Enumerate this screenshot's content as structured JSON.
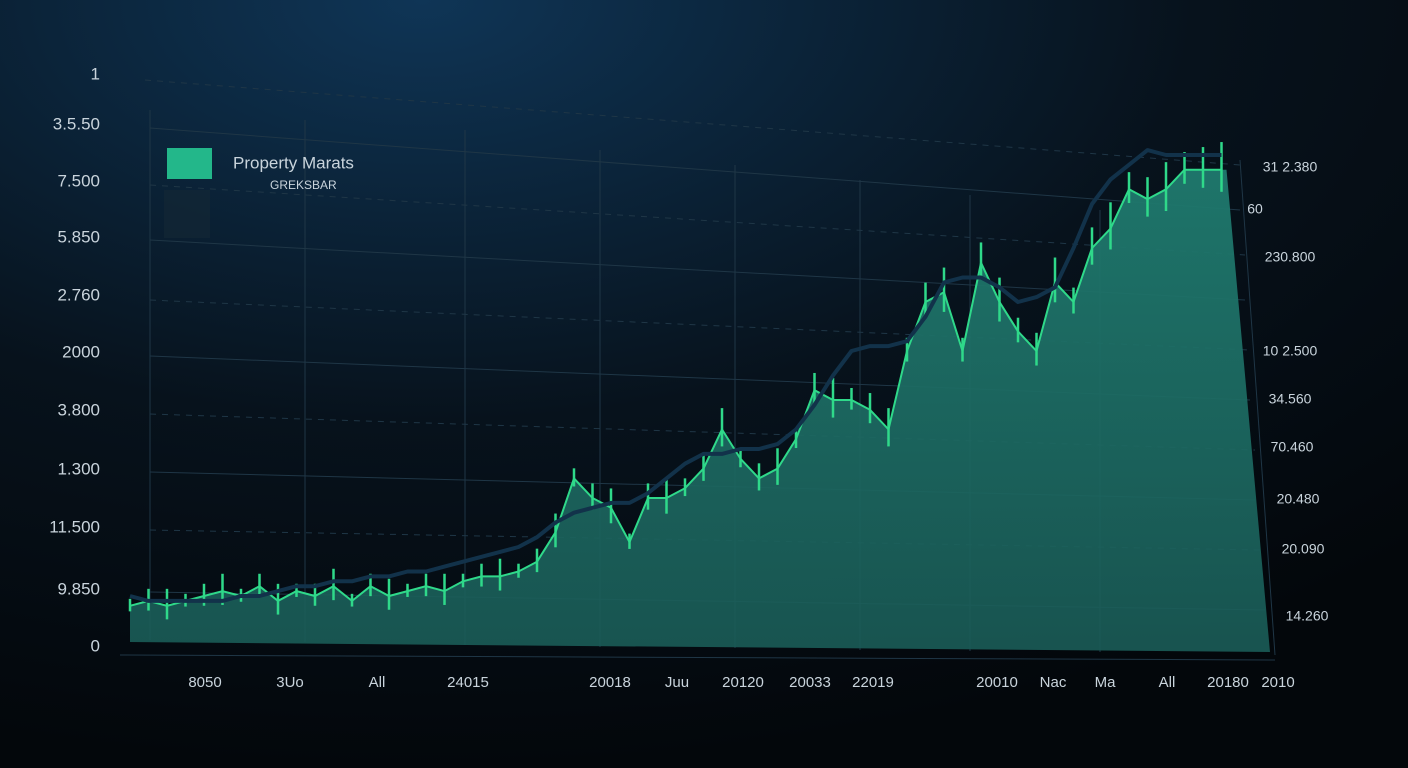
{
  "chart_data": {
    "type": "area",
    "legend": {
      "title": "Property Marats",
      "subtitle": "GREKSBAR"
    },
    "left_axis_labels": [
      "1",
      "3.5.50",
      "7.500",
      "5.850",
      "2.760",
      "2000",
      "3.800",
      "1.300",
      "11.500",
      "9.850",
      "0"
    ],
    "right_axis_labels": [
      "31 2.380",
      "60",
      "230.800",
      "10 2.500",
      "34.560",
      "70.460",
      "20.480",
      "20.090",
      "14.260"
    ],
    "x_axis_labels": [
      "8050",
      "3Uo",
      "All",
      "24015",
      "20018",
      "Juu",
      "20120",
      "20033",
      "22019",
      "20010",
      "Nac",
      "Ma",
      "All",
      "20180",
      "2010"
    ],
    "series": [
      {
        "color": "#2fd98a",
        "values": [
          8,
          9,
          8,
          9,
          10,
          11,
          10,
          12,
          9,
          11,
          10,
          12,
          9,
          12,
          10,
          11,
          12,
          11,
          13,
          14,
          14,
          15,
          17,
          23,
          34,
          30,
          28,
          21,
          30,
          30,
          32,
          36,
          44,
          38,
          34,
          36,
          42,
          52,
          50,
          50,
          48,
          44,
          60,
          70,
          72,
          60,
          78,
          70,
          64,
          60,
          74,
          70,
          81,
          85,
          93,
          91,
          93,
          97,
          97,
          97
        ]
      },
      {
        "color": "#12324a",
        "values": [
          10,
          9,
          9,
          9,
          9,
          9,
          10,
          10,
          11,
          12,
          12,
          13,
          13,
          14,
          14,
          15,
          15,
          16,
          17,
          18,
          19,
          20,
          22,
          25,
          27,
          28,
          29,
          29,
          31,
          34,
          37,
          39,
          39,
          40,
          40,
          41,
          44,
          49,
          55,
          60,
          61,
          61,
          62,
          67,
          74,
          75,
          75,
          73,
          70,
          71,
          73,
          81,
          90,
          95,
          98,
          101,
          100,
          100,
          100,
          100
        ]
      }
    ]
  }
}
